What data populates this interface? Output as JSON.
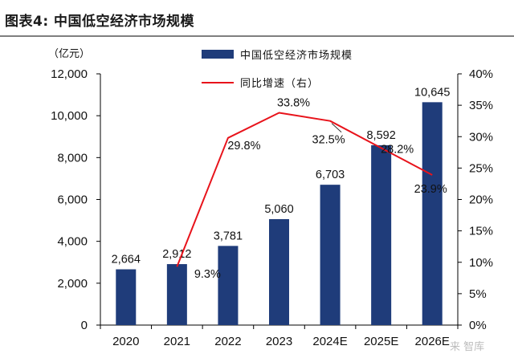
{
  "header": {
    "title": "图表4:  中国低空经济市场规模"
  },
  "watermark": "来 智库",
  "colors": {
    "bar": "#1f3c7a",
    "line": "#e8131b",
    "axis": "#000000"
  },
  "chart_data": {
    "type": "bar+line",
    "categories": [
      "2020",
      "2021",
      "2022",
      "2023",
      "2024E",
      "2025E",
      "2026E"
    ],
    "series": [
      {
        "name": "中国低空经济市场规模",
        "type": "bar",
        "axis": "left",
        "values": [
          2664,
          2912,
          3781,
          5060,
          6703,
          8592,
          10645
        ],
        "labels": [
          "2,664",
          "2,912",
          "3,781",
          "5,060",
          "6,703",
          "8,592",
          "10,645"
        ]
      },
      {
        "name": "同比增速（右）",
        "type": "line",
        "axis": "right",
        "values": [
          null,
          9.3,
          29.8,
          33.8,
          32.5,
          28.2,
          23.9
        ],
        "labels": [
          "",
          "9.3%",
          "29.8%",
          "33.8%",
          "32.5%",
          "28.2%",
          "23.9%"
        ]
      }
    ],
    "y_left": {
      "unit": "（亿元）",
      "min": 0,
      "max": 12000,
      "step": 2000,
      "ticks": [
        "0",
        "2,000",
        "4,000",
        "6,000",
        "8,000",
        "10,000",
        "12,000"
      ]
    },
    "y_right": {
      "min": 0,
      "max": 40,
      "step": 5,
      "ticks": [
        "0%",
        "5%",
        "10%",
        "15%",
        "20%",
        "25%",
        "30%",
        "35%",
        "40%"
      ]
    },
    "legend": [
      "中国低空经济市场规模",
      "同比增速（右）"
    ],
    "grid": false
  }
}
